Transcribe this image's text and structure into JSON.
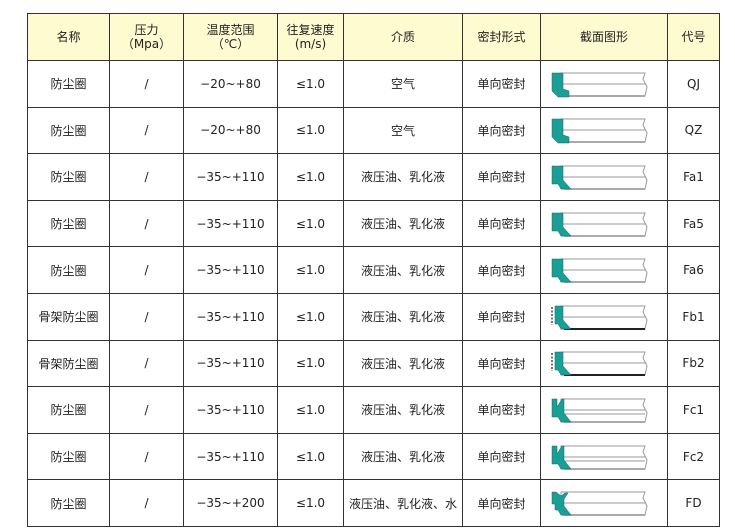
{
  "headers": [
    "名称",
    "压力",
    "（Mpa）",
    "温度范围",
    "（℃）",
    "往复速度",
    "(m/s)",
    "介质",
    "密封形式",
    "截面图形",
    "代号"
  ],
  "accent": "#1a9e96",
  "header_bg": "#fffbd0",
  "rows": [
    {
      "name": "防尘圈",
      "pressure": "/",
      "temp": "−20~+80",
      "speed": "≤1.0",
      "medium": "空气",
      "form": "单向密封",
      "shape": "qj",
      "code": "QJ"
    },
    {
      "name": "防尘圈",
      "pressure": "/",
      "temp": "−20~+80",
      "speed": "≤1.0",
      "medium": "空气",
      "form": "单向密封",
      "shape": "qj",
      "code": "QZ"
    },
    {
      "name": "防尘圈",
      "pressure": "/",
      "temp": "−35~+110",
      "speed": "≤1.0",
      "medium": "液压油、乳化液",
      "form": "单向密封",
      "shape": "fa",
      "code": "Fa1"
    },
    {
      "name": "防尘圈",
      "pressure": "/",
      "temp": "−35~+110",
      "speed": "≤1.0",
      "medium": "液压油、乳化液",
      "form": "单向密封",
      "shape": "fa",
      "code": "Fa5"
    },
    {
      "name": "防尘圈",
      "pressure": "/",
      "temp": "−35~+110",
      "speed": "≤1.0",
      "medium": "液压油、乳化液",
      "form": "单向密封",
      "shape": "fa",
      "code": "Fa6"
    },
    {
      "name": "骨架防尘圈",
      "pressure": "/",
      "temp": "−35~+110",
      "speed": "≤1.0",
      "medium": "液压油、乳化液",
      "form": "单向密封",
      "shape": "fb",
      "code": "Fb1"
    },
    {
      "name": "骨架防尘圈",
      "pressure": "/",
      "temp": "−35~+110",
      "speed": "≤1.0",
      "medium": "液压油、乳化液",
      "form": "单向密封",
      "shape": "fb",
      "code": "Fb2"
    },
    {
      "name": "防尘圈",
      "pressure": "/",
      "temp": "−35~+110",
      "speed": "≤1.0",
      "medium": "液压油、乳化液",
      "form": "单向密封",
      "shape": "fc",
      "code": "Fc1"
    },
    {
      "name": "防尘圈",
      "pressure": "/",
      "temp": "−35~+110",
      "speed": "≤1.0",
      "medium": "液压油、乳化液",
      "form": "单向密封",
      "shape": "fc",
      "code": "Fc2"
    },
    {
      "name": "防尘圈",
      "pressure": "/",
      "temp": "−35~+200",
      "speed": "≤1.0",
      "medium": "液压油、乳化液、水",
      "form": "单向密封",
      "shape": "fd",
      "code": "FD"
    }
  ]
}
